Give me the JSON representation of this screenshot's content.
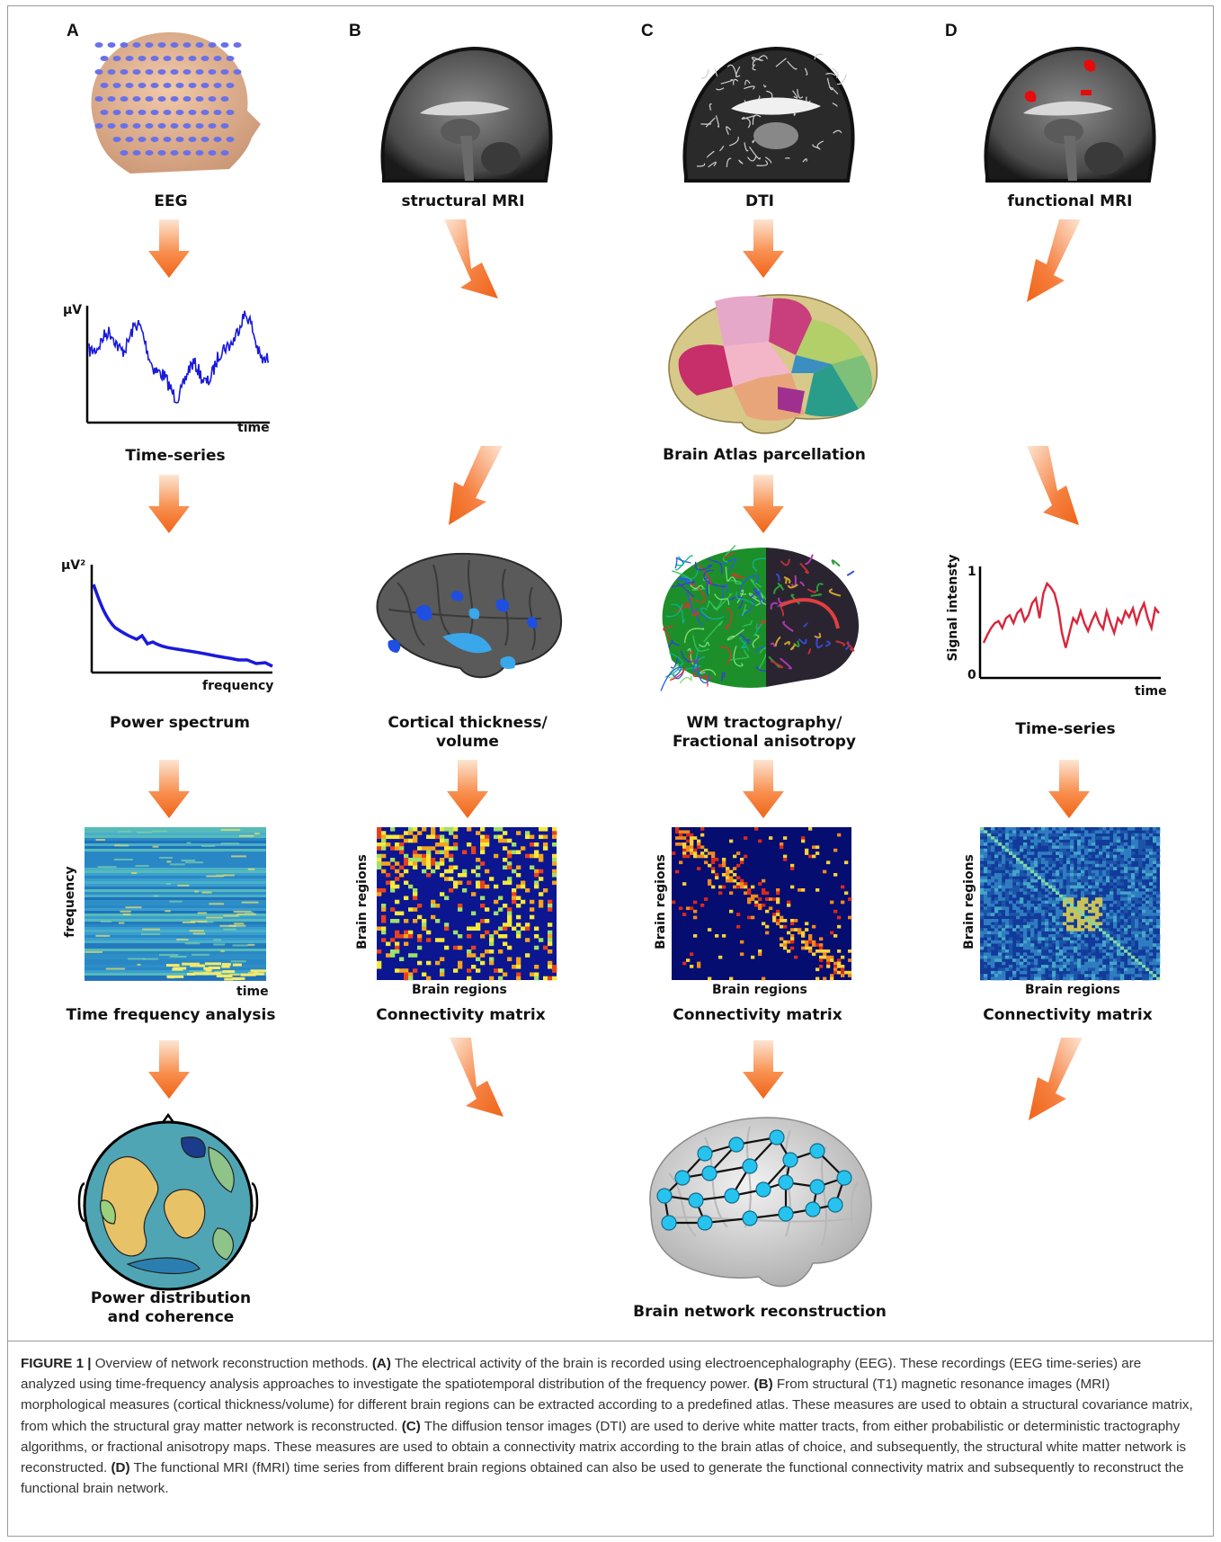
{
  "panels": {
    "A": {
      "letter": "A",
      "source_label": "EEG",
      "timeseries": {
        "title": "Time-series",
        "ylabel": "µV",
        "xlabel": "time"
      },
      "spectrum": {
        "title": "Power spectrum",
        "ylabel": "µV²",
        "xlabel": "frequency"
      },
      "tfa": {
        "title": "Time frequency analysis",
        "ylabel": "frequency",
        "xlabel": "time"
      },
      "final": {
        "title_line1": "Power distribution",
        "title_line2": "and coherence"
      }
    },
    "B": {
      "letter": "B",
      "source_label": "structural MRI",
      "cortical": {
        "title_line1": "Cortical thickness/",
        "title_line2": "volume"
      },
      "matrix": {
        "title": "Connectivity matrix",
        "ylabel": "Brain regions",
        "xlabel": "Brain regions"
      }
    },
    "C": {
      "letter": "C",
      "source_label": "DTI",
      "atlas": {
        "title": "Brain Atlas parcellation"
      },
      "tract": {
        "title_line1": "WM tractography/",
        "title_line2": "Fractional anisotropy"
      },
      "matrix": {
        "title": "Connectivity matrix",
        "ylabel": "Brain regions",
        "xlabel": "Brain regions"
      },
      "network": {
        "title": "Brain network reconstruction"
      }
    },
    "D": {
      "letter": "D",
      "source_label": "functional MRI",
      "timeseries": {
        "title": "Time-series",
        "ylabel": "Signal intensty",
        "xlabel": "time",
        "ytick_top": "1",
        "ytick_bottom": "0"
      },
      "matrix": {
        "title": "Connectivity matrix",
        "ylabel": "Brain regions",
        "xlabel": "Brain regions"
      }
    }
  },
  "caption": {
    "figure_label": "FIGURE 1 |",
    "intro": " Overview of network reconstruction methods. ",
    "a_label": "(A)",
    "a_text": " The electrical activity of the brain is recorded using electroencephalography (EEG). These recordings (EEG time-series) are analyzed using time-frequency analysis approaches to investigate the spatiotemporal distribution of the frequency power. ",
    "b_label": "(B)",
    "b_text": " From structural (T1) magnetic resonance images (MRI) morphological measures (cortical thickness/volume) for different brain regions can be extracted according to a predefined atlas. These measures are used to obtain a structural covariance matrix, from which the structural gray matter network is reconstructed. ",
    "c_label": "(C)",
    "c_text": " The diffusion tensor images (DTI) are used to derive white matter tracts, from either probabilistic or deterministic tractography algorithms, or fractional anisotropy maps. These measures are used to obtain a connectivity matrix according to the brain atlas of choice, and subsequently, the structural white matter network is reconstructed. ",
    "d_label": "(D)",
    "d_text": " The functional MRI (fMRI) time series from different brain regions obtained can also be used to generate the functional connectivity matrix and subsequently to reconstruct the functional brain network."
  },
  "colors": {
    "arrow": "#f26a1b",
    "eeg_trace": "#1a1adb",
    "fmri_trace": "#d8253b",
    "node": "#27c3ef"
  }
}
